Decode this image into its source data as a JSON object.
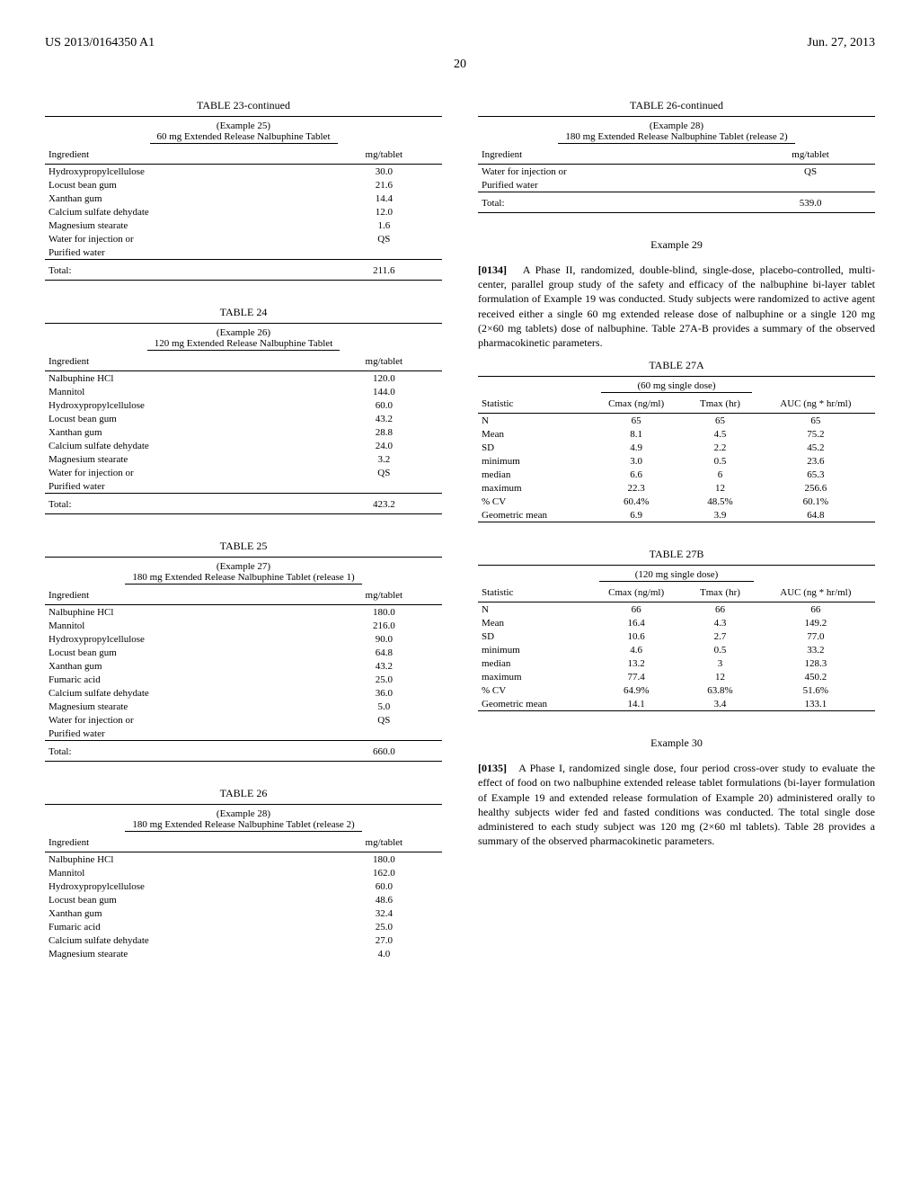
{
  "header": {
    "patent_no": "US 2013/0164350 A1",
    "date": "Jun. 27, 2013",
    "page": "20"
  },
  "tables": {
    "t23": {
      "title": "TABLE 23-continued",
      "caption1": "(Example 25)",
      "caption2": "60 mg Extended Release Nalbuphine Tablet",
      "col1": "Ingredient",
      "col2": "mg/tablet",
      "rows": [
        [
          "Hydroxypropylcellulose",
          "30.0"
        ],
        [
          "Locust bean gum",
          "21.6"
        ],
        [
          "Xanthan gum",
          "14.4"
        ],
        [
          "Calcium sulfate dehydate",
          "12.0"
        ],
        [
          "Magnesium stearate",
          "1.6"
        ],
        [
          "Water for injection or",
          "QS"
        ],
        [
          "Purified water",
          ""
        ]
      ],
      "total_label": "Total:",
      "total_value": "211.6"
    },
    "t24": {
      "title": "TABLE 24",
      "caption1": "(Example 26)",
      "caption2": "120 mg Extended Release Nalbuphine Tablet",
      "col1": "Ingredient",
      "col2": "mg/tablet",
      "rows": [
        [
          "Nalbuphine HCl",
          "120.0"
        ],
        [
          "Mannitol",
          "144.0"
        ],
        [
          "Hydroxypropylcellulose",
          "60.0"
        ],
        [
          "Locust bean gum",
          "43.2"
        ],
        [
          "Xanthan gum",
          "28.8"
        ],
        [
          "Calcium sulfate dehydate",
          "24.0"
        ],
        [
          "Magnesium stearate",
          "3.2"
        ],
        [
          "Water for injection or",
          "QS"
        ],
        [
          "Purified water",
          ""
        ]
      ],
      "total_label": "Total:",
      "total_value": "423.2"
    },
    "t25": {
      "title": "TABLE 25",
      "caption1": "(Example 27)",
      "caption2": "180 mg Extended Release Nalbuphine Tablet (release 1)",
      "col1": "Ingredient",
      "col2": "mg/tablet",
      "rows": [
        [
          "Nalbuphine HCl",
          "180.0"
        ],
        [
          "Mannitol",
          "216.0"
        ],
        [
          "Hydroxypropylcellulose",
          "90.0"
        ],
        [
          "Locust bean gum",
          "64.8"
        ],
        [
          "Xanthan gum",
          "43.2"
        ],
        [
          "Fumaric acid",
          "25.0"
        ],
        [
          "Calcium sulfate dehydate",
          "36.0"
        ],
        [
          "Magnesium stearate",
          "5.0"
        ],
        [
          "Water for injection or",
          "QS"
        ],
        [
          "Purified water",
          ""
        ]
      ],
      "total_label": "Total:",
      "total_value": "660.0"
    },
    "t26": {
      "title": "TABLE 26",
      "caption1": "(Example 28)",
      "caption2": "180 mg Extended Release Nalbuphine Tablet (release 2)",
      "col1": "Ingredient",
      "col2": "mg/tablet",
      "rows": [
        [
          "Nalbuphine HCl",
          "180.0"
        ],
        [
          "Mannitol",
          "162.0"
        ],
        [
          "Hydroxypropylcellulose",
          "60.0"
        ],
        [
          "Locust bean gum",
          "48.6"
        ],
        [
          "Xanthan gum",
          "32.4"
        ],
        [
          "Fumaric acid",
          "25.0"
        ],
        [
          "Calcium sulfate dehydate",
          "27.0"
        ],
        [
          "Magnesium stearate",
          "4.0"
        ]
      ]
    },
    "t26c": {
      "title": "TABLE 26-continued",
      "caption1": "(Example 28)",
      "caption2": "180 mg Extended Release Nalbuphine Tablet (release 2)",
      "col1": "Ingredient",
      "col2": "mg/tablet",
      "rows": [
        [
          "Water for injection or",
          "QS"
        ],
        [
          "Purified water",
          ""
        ]
      ],
      "total_label": "Total:",
      "total_value": "539.0"
    },
    "t27a": {
      "title": "TABLE 27A",
      "caption": "(60 mg single dose)",
      "h1": "Statistic",
      "h2": "Cmax (ng/ml)",
      "h3": "Tmax (hr)",
      "h4": "AUC (ng * hr/ml)",
      "rows": [
        [
          "N",
          "65",
          "65",
          "65"
        ],
        [
          "Mean",
          "8.1",
          "4.5",
          "75.2"
        ],
        [
          "SD",
          "4.9",
          "2.2",
          "45.2"
        ],
        [
          "minimum",
          "3.0",
          "0.5",
          "23.6"
        ],
        [
          "median",
          "6.6",
          "6",
          "65.3"
        ],
        [
          "maximum",
          "22.3",
          "12",
          "256.6"
        ],
        [
          "% CV",
          "60.4%",
          "48.5%",
          "60.1%"
        ],
        [
          "Geometric mean",
          "6.9",
          "3.9",
          "64.8"
        ]
      ]
    },
    "t27b": {
      "title": "TABLE 27B",
      "caption": "(120 mg single dose)",
      "h1": "Statistic",
      "h2": "Cmax (ng/ml)",
      "h3": "Tmax (hr)",
      "h4": "AUC (ng * hr/ml)",
      "rows": [
        [
          "N",
          "66",
          "66",
          "66"
        ],
        [
          "Mean",
          "16.4",
          "4.3",
          "149.2"
        ],
        [
          "SD",
          "10.6",
          "2.7",
          "77.0"
        ],
        [
          "minimum",
          "4.6",
          "0.5",
          "33.2"
        ],
        [
          "median",
          "13.2",
          "3",
          "128.3"
        ],
        [
          "maximum",
          "77.4",
          "12",
          "450.2"
        ],
        [
          "% CV",
          "64.9%",
          "63.8%",
          "51.6%"
        ],
        [
          "Geometric mean",
          "14.1",
          "3.4",
          "133.1"
        ]
      ]
    }
  },
  "examples": {
    "e29": {
      "heading": "Example 29",
      "num": "[0134]",
      "text": "A Phase II, randomized, double-blind, single-dose, placebo-controlled, multi-center, parallel group study of the safety and efficacy of the nalbuphine bi-layer tablet formulation of Example 19 was conducted. Study subjects were randomized to active agent received either a single 60 mg extended release dose of nalbuphine or a single 120 mg (2×60 mg tablets) dose of nalbuphine. Table 27A-B provides a summary of the observed pharmacokinetic parameters."
    },
    "e30": {
      "heading": "Example 30",
      "num": "[0135]",
      "text": "A Phase I, randomized single dose, four period cross-over study to evaluate the effect of food on two nalbuphine extended release tablet formulations (bi-layer formulation of Example 19 and extended release formulation of Example 20) administered orally to healthy subjects wider fed and fasted conditions was conducted. The total single dose administered to each study subject was 120 mg (2×60 ml tablets). Table 28 provides a summary of the observed pharmacokinetic parameters."
    }
  }
}
